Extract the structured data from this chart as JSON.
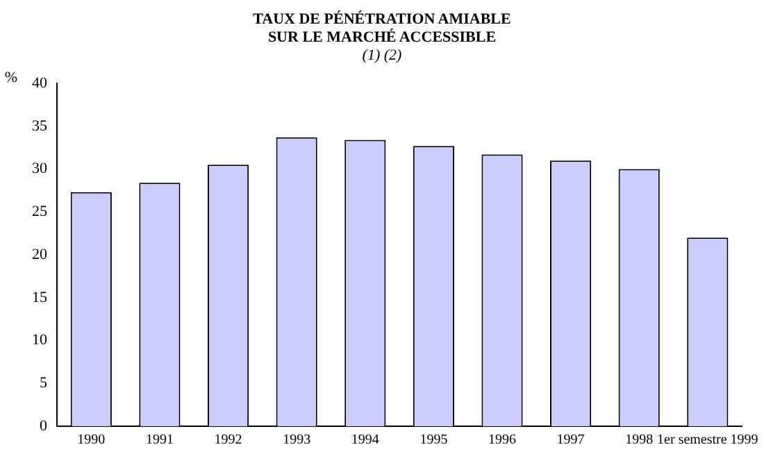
{
  "chart_data": {
    "type": "bar",
    "title": "TAUX DE PÉNÉTRATION AMIABLE\nSUR LE MARCHÉ ACCESSIBLE",
    "subtitle": "(1) (2)",
    "ylabel": "%",
    "categories": [
      "1990",
      "1991",
      "1992",
      "1993",
      "1994",
      "1995",
      "1996",
      "1997",
      "1998",
      "1er semestre 1999"
    ],
    "values": [
      27.3,
      28.4,
      30.5,
      33.7,
      33.4,
      32.7,
      31.7,
      31.0,
      30.0,
      22.0
    ],
    "color": "#ccccff",
    "ylim": [
      0,
      40
    ],
    "yticks": [
      0,
      5,
      10,
      15,
      20,
      25,
      30,
      35,
      40
    ],
    "grid": false,
    "legend": false
  }
}
